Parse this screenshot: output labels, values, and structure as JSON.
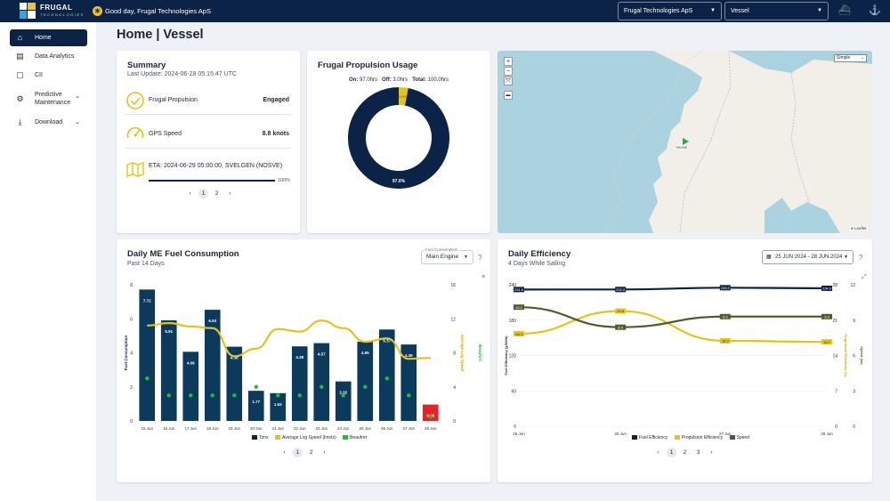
{
  "header": {
    "logo_line1": "FRUGAL",
    "logo_line2": "TECHNOLOGIES",
    "greeting": "Good day, Frugal Technologies ApS",
    "company_select": "Frugal Technologies ApS",
    "vessel_select": "Vessel"
  },
  "sidebar": {
    "items": [
      {
        "label": "Home",
        "icon": "home-icon"
      },
      {
        "label": "Data Analytics",
        "icon": "analytics-icon"
      },
      {
        "label": "CII",
        "icon": "cii-icon"
      },
      {
        "label_line1": "Predictive",
        "label_line2": "Maintenance",
        "icon": "maintenance-icon"
      },
      {
        "label": "Download",
        "icon": "download-icon"
      }
    ]
  },
  "page": {
    "title": "Home | Vessel"
  },
  "summary": {
    "title": "Summary",
    "last_update": "Last Update: 2024-06-28 05:15:47 UTC",
    "propulsion_label": "Frugal Propulsion",
    "propulsion_value": "Engaged",
    "gps_label": "GPS Speed",
    "gps_value": "8.8 knots",
    "eta": "ETA: 2024-06-29 05:00:00, SVELGEN (NOSVE)",
    "eta_progress": 1.0,
    "eta_progress_label": "100%",
    "pages": [
      "1",
      "2"
    ]
  },
  "propulsion_usage": {
    "title": "Frugal Propulsion Usage",
    "on_label": "On:",
    "on_value": "97.0hrs",
    "off_label": "Off:",
    "off_value": "3.0hrs",
    "total_label": "Total:",
    "total_value": "100.0hrs",
    "on_pct_label": "97.0%",
    "off_pct_label": "3.0%",
    "colors": {
      "on": "#0b2346",
      "off": "#e2c41e"
    }
  },
  "map": {
    "zoom_in": "+",
    "zoom_out": "−",
    "layer_select": "Simple",
    "vessel_label": "Vessel",
    "attribution": "Leaflet"
  },
  "fuel": {
    "title": "Daily ME Fuel Consumption",
    "subtitle": "Past 14 Days",
    "select_label": "Fuel Consumption",
    "select_value": "Main Engine",
    "help": "?",
    "pages": [
      "1",
      "2"
    ],
    "legend": [
      "Tons",
      "Average Log Speed (knots)",
      "Beaufort"
    ]
  },
  "efficiency": {
    "title": "Daily Efficiency",
    "subtitle": "4 Days While Sailing",
    "date_range": "25 JUN 2024 - 28 JUN 2024",
    "help": "?",
    "pages": [
      "1",
      "2",
      "3"
    ],
    "legend": [
      "Fuel Efficiency",
      "Propulsion Efficiency",
      "Speed"
    ]
  },
  "chart_data": [
    {
      "type": "bar",
      "title": "Daily ME Fuel Consumption",
      "categories": [
        "15 Jun",
        "16 Jun",
        "17 Jun",
        "18 Jun",
        "19 Jun",
        "20 Jun",
        "21 Jun",
        "22 Jun",
        "23 Jun",
        "24 Jun",
        "25 Jun",
        "26 Jun",
        "27 Jun",
        "28 Jun"
      ],
      "series": [
        {
          "name": "Tons",
          "axis": "left",
          "values": [
            7.72,
            5.91,
            4.06,
            6.53,
            4.36,
            1.77,
            1.63,
            4.38,
            4.57,
            2.32,
            4.65,
            5.37,
            4.49,
            0.96
          ],
          "color": "#0b3a5c",
          "highlight_last_color": "#e8202a"
        },
        {
          "name": "Average Log Speed (knots)",
          "axis": "right",
          "values": [
            11.2,
            11.5,
            11.1,
            10.9,
            7.6,
            8.5,
            10.8,
            10.5,
            11.8,
            10.9,
            9.3,
            9.7,
            7.3,
            7.4
          ],
          "color": "#e2c41e"
        },
        {
          "name": "Beaufort",
          "axis": "right",
          "values": [
            5,
            3,
            3,
            3,
            3,
            4,
            3,
            3,
            4,
            3,
            4,
            5,
            3,
            0.5
          ],
          "color": "#19c22f"
        }
      ],
      "ylabel": "Fuel Consumption",
      "y2label": "Average Log Speed",
      "y3label": "Beaufort",
      "ylim": [
        0,
        8
      ],
      "yticks": [
        0,
        2,
        4,
        6,
        8
      ],
      "y2lim": [
        0,
        16
      ],
      "y2ticks": [
        0,
        4,
        8,
        12,
        16
      ]
    },
    {
      "type": "line",
      "title": "Daily Efficiency",
      "categories": [
        "25 Jun",
        "26 Jun",
        "27 Jun",
        "28 Jun"
      ],
      "x_positions": [
        0,
        0.33,
        0.67,
        1.0
      ],
      "series": [
        {
          "name": "Fuel Efficiency",
          "axis": "left",
          "values": [
            231.9,
            232.0,
            235.0,
            234.0
          ],
          "labels": [
            "231.9",
            "232.0",
            "235.0",
            "234.0"
          ],
          "color": "#0b2346"
        },
        {
          "name": "Propulsion Efficiency",
          "axis": "mid",
          "values": [
            18.3,
            22.8,
            16.9,
            16.7
          ],
          "labels": [
            "18.3",
            "22.8",
            "16.9",
            "16.7"
          ],
          "color": "#e2c41e"
        },
        {
          "name": "Speed",
          "axis": "right",
          "values": [
            10.1,
            8.4,
            9.3,
            9.3
          ],
          "labels": [
            "10.1",
            "8.4",
            "9.3",
            "9.3"
          ],
          "color": "#55592e"
        }
      ],
      "ylabel": "Fuel Efficiency (g/kWh)",
      "y2label": "Propulsion Efficiency (%)",
      "y3label": "Speed (kn)",
      "ylim": [
        0,
        240
      ],
      "yticks": [
        0,
        60,
        120,
        180,
        240
      ],
      "y2lim": [
        0,
        28
      ],
      "y2ticks": [
        0,
        7,
        14,
        21,
        28
      ],
      "y3lim": [
        0,
        12
      ],
      "y3ticks": [
        0,
        3,
        6,
        9,
        12
      ]
    }
  ]
}
